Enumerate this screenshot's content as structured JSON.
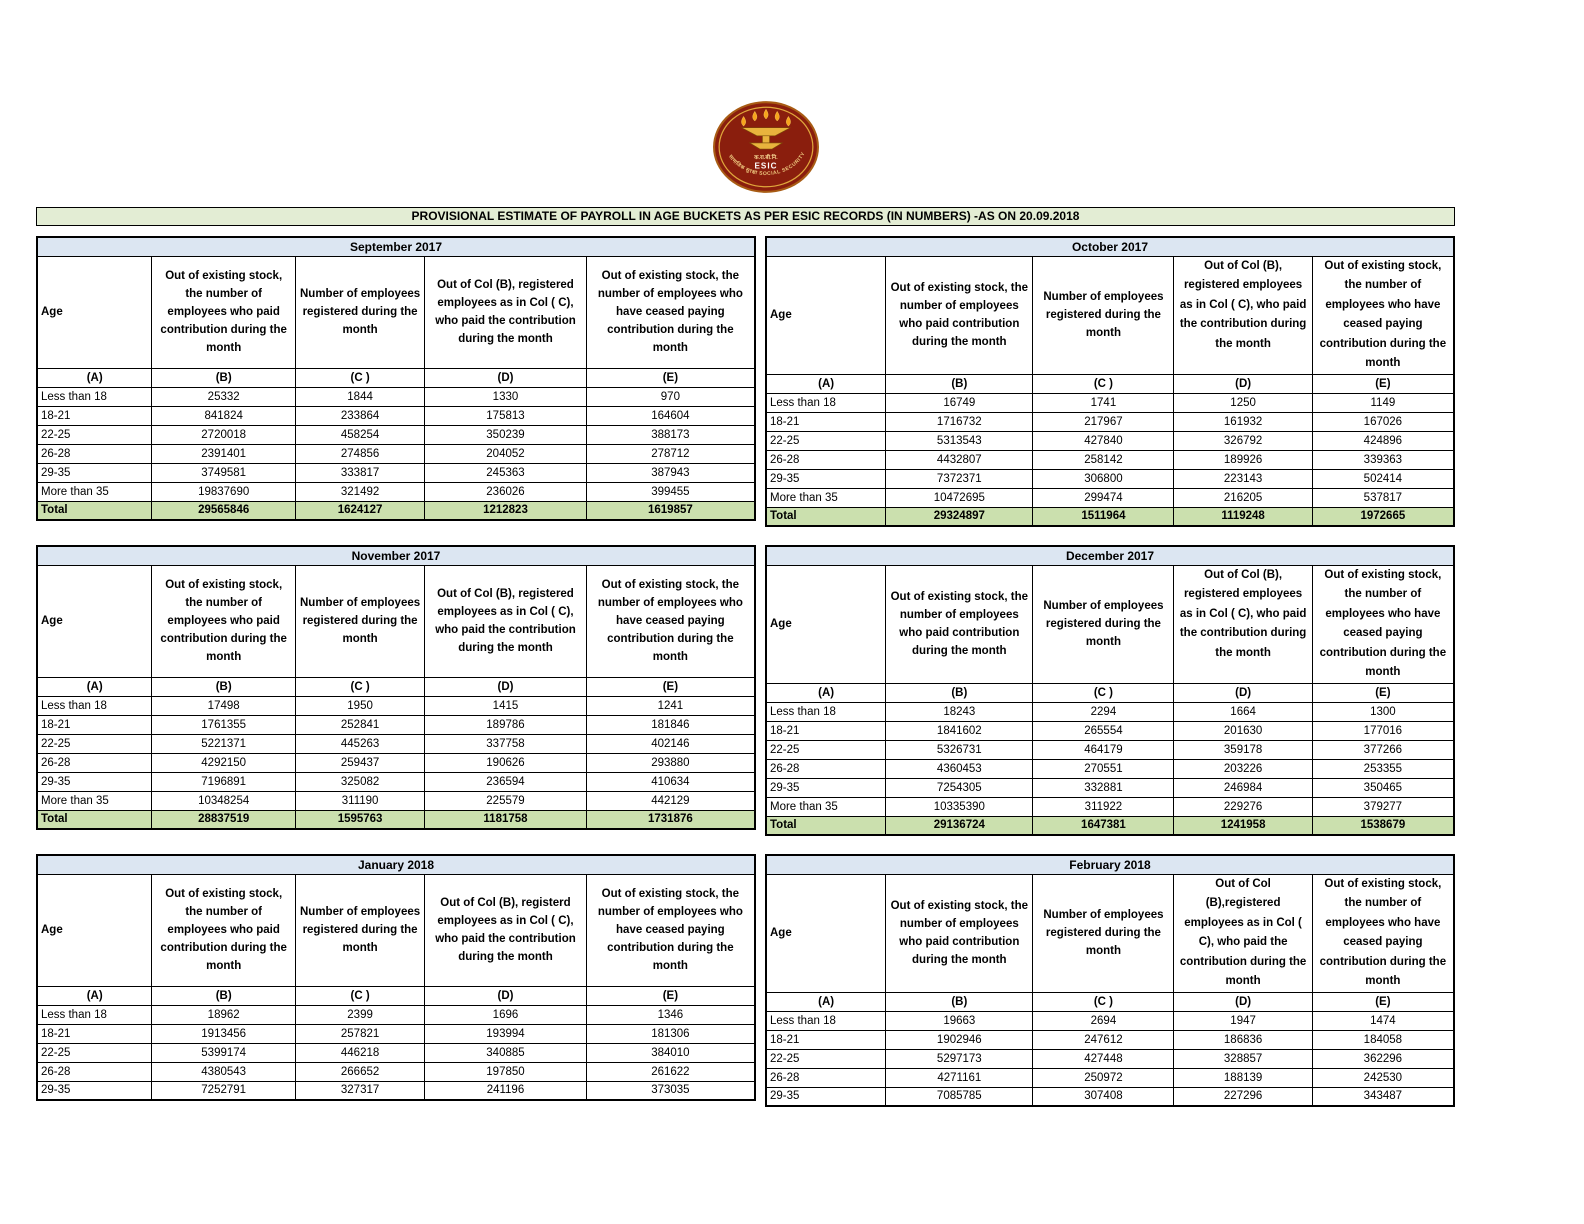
{
  "page": {
    "title": "PROVISIONAL ESTIMATE OF PAYROLL IN AGE BUCKETS AS PER ESIC RECORDS (IN NUMBERS) -AS ON 20.09.2018"
  },
  "logo": {
    "acronym": "ESIC",
    "hindi_abbrev": "क.रा.बी.नि.",
    "arc_text": "सामाजिक सुरक्षा  SOCIAL SECURITY"
  },
  "colors": {
    "title_bar_bg": "#e3edd4",
    "month_header_bg": "#dce6f2",
    "total_row_bg": "#cbe0ae",
    "logo_maroon": "#8a1e0d",
    "logo_gold": "#e9b43d"
  },
  "column_letters": [
    "(A)",
    "(B)",
    "(C )",
    "(D)",
    "(E)"
  ],
  "tables": [
    {
      "month": "September 2017",
      "headers": {
        "age": "Age",
        "b": "Out of existing stock, the number of employees who paid contribution during the month",
        "c": "Number of employees registered during the month",
        "d": "Out of Col (B), registered employees as in Col ( C), who paid the contribution during the month",
        "e": "Out of existing stock, the number of  employees who have ceased paying contribution during the month"
      },
      "rows": [
        [
          "Less than 18",
          "25332",
          "1844",
          "1330",
          "970"
        ],
        [
          "18-21",
          "841824",
          "233864",
          "175813",
          "164604"
        ],
        [
          "22-25",
          "2720018",
          "458254",
          "350239",
          "388173"
        ],
        [
          "26-28",
          "2391401",
          "274856",
          "204052",
          "278712"
        ],
        [
          "29-35",
          "3749581",
          "333817",
          "245363",
          "387943"
        ],
        [
          "More than 35",
          "19837690",
          "321492",
          "236026",
          "399455"
        ]
      ],
      "total": [
        "Total",
        "29565846",
        "1624127",
        "1212823",
        "1619857"
      ]
    },
    {
      "month": "October 2017",
      "headers": {
        "age": "Age",
        "b": "Out of existing stock, the number of employees who paid contribution during the month",
        "c": "Number of employees registered during the month",
        "d": "Out of Col (B), registered employees as in Col ( C), who paid the contribution during the month",
        "e": "Out of existing stock, the number of  employees who have ceased paying contribution during the month"
      },
      "rows": [
        [
          "Less than 18",
          "16749",
          "1741",
          "1250",
          "1149"
        ],
        [
          "18-21",
          "1716732",
          "217967",
          "161932",
          "167026"
        ],
        [
          "22-25",
          "5313543",
          "427840",
          "326792",
          "424896"
        ],
        [
          "26-28",
          "4432807",
          "258142",
          "189926",
          "339363"
        ],
        [
          "29-35",
          "7372371",
          "306800",
          "223143",
          "502414"
        ],
        [
          "More than 35",
          "10472695",
          "299474",
          "216205",
          "537817"
        ]
      ],
      "total": [
        "Total",
        "29324897",
        "1511964",
        "1119248",
        "1972665"
      ]
    },
    {
      "month": "November 2017",
      "headers": {
        "age": "Age",
        "b": "Out of existing stock, the number of employees who paid contribution during the month",
        "c": "Number of employees registered during the month",
        "d": "Out of Col (B), registered employees as in Col ( C), who paid the contribution during the month",
        "e": "Out of existing stock, the number of  employees who have ceased paying contribution during the month"
      },
      "rows": [
        [
          "Less than 18",
          "17498",
          "1950",
          "1415",
          "1241"
        ],
        [
          "18-21",
          "1761355",
          "252841",
          "189786",
          "181846"
        ],
        [
          "22-25",
          "5221371",
          "445263",
          "337758",
          "402146"
        ],
        [
          "26-28",
          "4292150",
          "259437",
          "190626",
          "293880"
        ],
        [
          "29-35",
          "7196891",
          "325082",
          "236594",
          "410634"
        ],
        [
          "More than 35",
          "10348254",
          "311190",
          "225579",
          "442129"
        ]
      ],
      "total": [
        "Total",
        "28837519",
        "1595763",
        "1181758",
        "1731876"
      ]
    },
    {
      "month": "December 2017",
      "headers": {
        "age": "Age",
        "b": "Out of existing stock, the number of employees who paid contribution during the month",
        "c": "Number of employees registered during the month",
        "d": "Out of Col (B), registered employees as in Col ( C), who paid the contribution during the month",
        "e": "Out of existing stock, the number of  employees who have ceased paying contribution during the month"
      },
      "rows": [
        [
          "Less than 18",
          "18243",
          "2294",
          "1664",
          "1300"
        ],
        [
          "18-21",
          "1841602",
          "265554",
          "201630",
          "177016"
        ],
        [
          "22-25",
          "5326731",
          "464179",
          "359178",
          "377266"
        ],
        [
          "26-28",
          "4360453",
          "270551",
          "203226",
          "253355"
        ],
        [
          "29-35",
          "7254305",
          "332881",
          "246984",
          "350465"
        ],
        [
          "More than 35",
          "10335390",
          "311922",
          "229276",
          "379277"
        ]
      ],
      "total": [
        "Total",
        "29136724",
        "1647381",
        "1241958",
        "1538679"
      ]
    },
    {
      "month": "January 2018",
      "headers": {
        "age": "Age",
        "b": "Out of existing stock, the number of employees who paid contribution during the month",
        "c": "Number of employees registered during the month",
        "d": "Out of Col (B), registerd employees as in Col ( C), who paid the contribution during the month",
        "e": "Out of existing stock, the number of  employees who have ceased paying contribution during the month"
      },
      "rows": [
        [
          "Less than 18",
          "18962",
          "2399",
          "1696",
          "1346"
        ],
        [
          "18-21",
          "1913456",
          "257821",
          "193994",
          "181306"
        ],
        [
          "22-25",
          "5399174",
          "446218",
          "340885",
          "384010"
        ],
        [
          "26-28",
          "4380543",
          "266652",
          "197850",
          "261622"
        ],
        [
          "29-35",
          "7252791",
          "327317",
          "241196",
          "373035"
        ]
      ]
    },
    {
      "month": "February 2018",
      "headers": {
        "age": "Age",
        "b": "Out of existing stock, the number of employees who paid contribution during the month",
        "c": "Number of employees registered during the month",
        "d": "Out of Col (B),registered employees as in Col ( C), who paid the contribution during the month",
        "e": "Out of existing stock, the number of  employees who have ceased paying contribution during the month"
      },
      "rows": [
        [
          "Less than 18",
          "19663",
          "2694",
          "1947",
          "1474"
        ],
        [
          "18-21",
          "1902946",
          "247612",
          "186836",
          "184058"
        ],
        [
          "22-25",
          "5297173",
          "427448",
          "328857",
          "362296"
        ],
        [
          "26-28",
          "4271161",
          "250972",
          "188139",
          "242530"
        ],
        [
          "29-35",
          "7085785",
          "307408",
          "227296",
          "343487"
        ]
      ]
    }
  ]
}
